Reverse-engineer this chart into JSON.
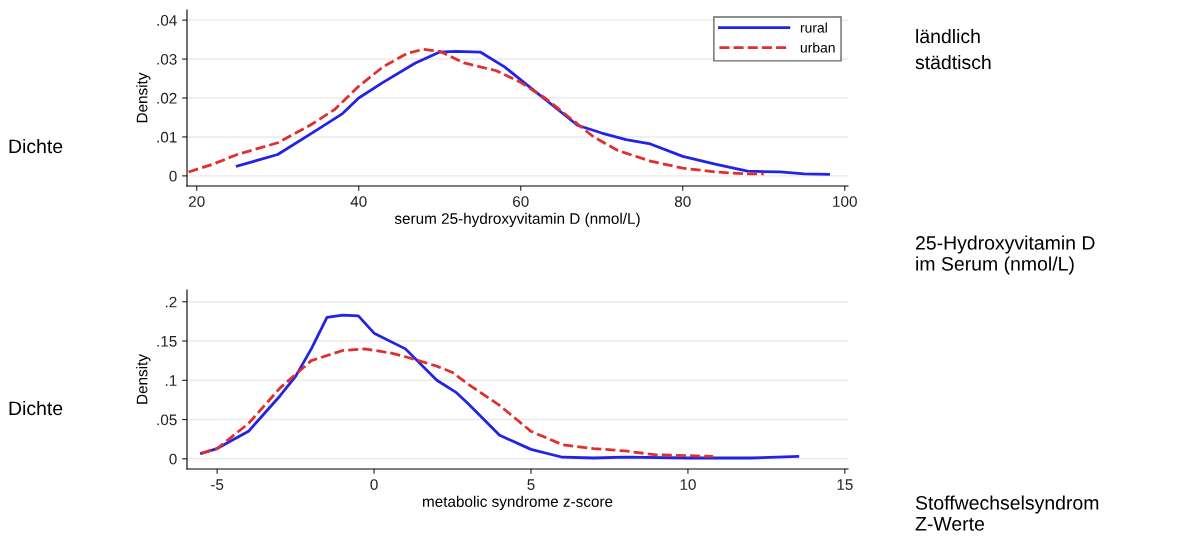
{
  "chart_data": [
    {
      "type": "line",
      "xlabel": "serum 25-hydroxyvitamin D (nmol/L)",
      "ylabel": "Density",
      "xlim": [
        18.8,
        100.4
      ],
      "xticks": [
        20,
        40,
        60,
        80,
        100
      ],
      "ylim": [
        -0.0026,
        0.0426
      ],
      "yticks": [
        {
          "value": 0,
          "label": "0"
        },
        {
          "value": 0.01,
          "label": ".01"
        },
        {
          "value": 0.02,
          "label": ".02"
        },
        {
          "value": 0.03,
          "label": ".03"
        },
        {
          "value": 0.04,
          "label": ".04"
        }
      ],
      "grid": "y",
      "legend": "top right",
      "marker": "none",
      "series": [
        {
          "name": "rural",
          "color": "#2323e6",
          "line_style": "solid",
          "x": [
            25,
            30,
            35,
            38,
            40,
            43,
            47,
            50,
            52,
            55,
            58,
            61,
            64,
            67,
            70,
            73,
            76,
            80,
            84,
            88,
            92,
            95,
            98
          ],
          "values": [
            0.0025,
            0.0055,
            0.012,
            0.016,
            0.02,
            0.024,
            0.029,
            0.0318,
            0.032,
            0.0318,
            0.028,
            0.023,
            0.018,
            0.013,
            0.011,
            0.0093,
            0.0082,
            0.005,
            0.003,
            0.0012,
            0.001,
            0.0005,
            0.0004
          ]
        },
        {
          "name": "urban",
          "color": "#e0302e",
          "line_style": "dashed",
          "x": [
            19,
            22,
            25,
            30,
            34,
            37,
            40,
            43,
            46,
            48,
            50,
            53,
            57,
            60,
            63,
            66,
            69,
            72,
            76,
            80,
            84,
            88,
            90
          ],
          "values": [
            0.001,
            0.003,
            0.0055,
            0.0085,
            0.013,
            0.017,
            0.023,
            0.028,
            0.0315,
            0.0325,
            0.032,
            0.029,
            0.027,
            0.024,
            0.02,
            0.015,
            0.01,
            0.0065,
            0.0038,
            0.002,
            0.001,
            0.0005,
            0.0005
          ]
        }
      ],
      "annotations": [
        "Dichte",
        "ländlich",
        "städtisch",
        "25-Hydroxyvitamin D\nim Serum (nmol/L)"
      ]
    },
    {
      "type": "line",
      "xlabel": "metabolic syndrome z-score",
      "ylabel": "Density",
      "xlim": [
        -5.96,
        15.1
      ],
      "xticks": [
        -5,
        0,
        5,
        10,
        15
      ],
      "ylim": [
        -0.013,
        0.215
      ],
      "yticks": [
        {
          "value": 0,
          "label": "0"
        },
        {
          "value": 0.05,
          "label": ".05"
        },
        {
          "value": 0.1,
          "label": ".1"
        },
        {
          "value": 0.15,
          "label": ".15"
        },
        {
          "value": 0.2,
          "label": ".2"
        }
      ],
      "grid": "y",
      "marker": "none",
      "series": [
        {
          "color": "#2323e6",
          "line_style": "solid",
          "x": [
            -5.5,
            -5,
            -4,
            -3,
            -2.5,
            -2,
            -1.5,
            -1,
            -0.5,
            0,
            1,
            2,
            2.6,
            3,
            4,
            5,
            6,
            7,
            8,
            10,
            12,
            13.5
          ],
          "values": [
            0.007,
            0.013,
            0.035,
            0.08,
            0.105,
            0.14,
            0.18,
            0.183,
            0.182,
            0.16,
            0.14,
            0.1,
            0.085,
            0.07,
            0.03,
            0.012,
            0.002,
            0.001,
            0.002,
            0.001,
            0.001,
            0.003
          ]
        },
        {
          "color": "#e0302e",
          "line_style": "dashed",
          "x": [
            -5.5,
            -5,
            -4,
            -3,
            -2,
            -1,
            -0.3,
            0.5,
            1,
            2,
            2.5,
            3,
            4,
            5,
            6,
            7,
            8,
            9,
            10,
            10.8
          ],
          "values": [
            0.007,
            0.013,
            0.045,
            0.09,
            0.125,
            0.138,
            0.14,
            0.135,
            0.13,
            0.118,
            0.11,
            0.095,
            0.068,
            0.035,
            0.018,
            0.013,
            0.01,
            0.005,
            0.004,
            0.003
          ]
        }
      ],
      "annotations": [
        "Dichte",
        "Stoffwechselsyndrom\nZ-Werte"
      ]
    }
  ]
}
